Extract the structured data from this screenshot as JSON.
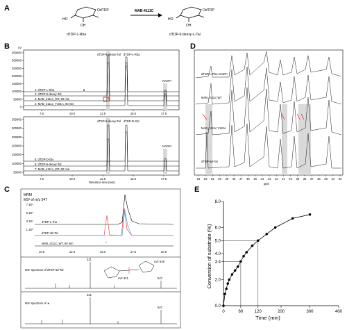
{
  "panel_a": {
    "label": "A",
    "substrate_group": "OdTDP",
    "product_group": "OdTDP",
    "enzyme": "MAB-4111C",
    "substrate_name": "dTDP-L-Rha",
    "product_name": "dTDP-6-deoxy-L-Tal",
    "oh": "HO",
    "oh2": "OH"
  },
  "panel_b": {
    "label": "B",
    "unit": "uV",
    "top": {
      "y_ticks": [
        "350000",
        "300000",
        "250000",
        "200000",
        "150000",
        "100000",
        "50000",
        "0"
      ],
      "peaks": [
        "dTDP-6-deoxy-Tal",
        "dTDP-L-Rha",
        "NADP+"
      ],
      "traces": [
        "1: dTDP-L-Rha",
        "2: dTDP-6-deoxy-Tal",
        "3: MAB_4111c_WT, 60 min",
        "4: MAB_4111c_Y181A, 60 min"
      ]
    },
    "bottom": {
      "y_ticks": [
        "350000",
        "300000",
        "250000",
        "200000",
        "150000",
        "100000",
        "50000"
      ],
      "peaks": [
        "dTDP-6-deoxy-Tal",
        "dTDP-D-Glc",
        "NADP+"
      ],
      "traces": [
        "5: dTDP-D-Glc",
        "6: dTDP-6-deoxy-Tal",
        "7: MAB_4111c_WT, 60 min"
      ]
    },
    "x_ticks": [
      "7.5",
      "10.0",
      "12.5",
      "15.0",
      "17.5"
    ],
    "x_ticks_top": [
      "7.5",
      "10.0",
      "12.5",
      "15.0",
      "17.5"
    ],
    "xlabel": "Retention time (min)"
  },
  "panel_c": {
    "label": "C",
    "title1": "MRM",
    "title2": "MS² of m/z 547",
    "traces": [
      "dTDP-L-rha",
      "dTDP-d6-Tal",
      "MAB_4111c_WT, 60 min"
    ],
    "star": "*",
    "x_ticks": [
      "10.0",
      "12.5",
      "15.0",
      "17.5",
      "20.0"
    ],
    "y_ticks": [
      "7.1E⁵",
      "5.1E⁵",
      "3.1E⁵",
      "1.1E⁵"
    ],
    "ms2_a_label": "MS² spectrum of dTDP-6d-Tal",
    "ms2_a_peaks": [
      "321",
      "547"
    ],
    "ms2_b_label": "MS² spectrum of ★",
    "ms2_b_peaks": [
      "321",
      "547"
    ],
    "struct_note": "m/z 548",
    "struct_frag": "m/z 321"
  },
  "panel_d": {
    "label": "D",
    "traces": [
      "dTDP-L-Rha NADP+",
      "MAB_4111c WT",
      "MAB_4111c Y181A",
      "dTDP-6d-Tal"
    ],
    "x_ticks": [
      "53",
      "52",
      "51",
      "50",
      "49",
      "48",
      "47",
      "46",
      "45",
      "44",
      "43",
      "42",
      "41",
      "40",
      "39",
      "38",
      "37",
      "36",
      "35",
      "34",
      "33"
    ],
    "xlabel": "ppm"
  },
  "panel_e": {
    "label": "E",
    "xlabel": "Time (min)",
    "ylabel": "Conversion of substrate (%)",
    "x_ticks": [
      "0",
      "60",
      "120",
      "200",
      "300",
      "400"
    ],
    "y_ticks": [
      "0.0",
      "2.0",
      "3.4",
      "4.0",
      "5.0",
      "6.0",
      "8.0"
    ]
  },
  "chart_data": {
    "type": "scatter",
    "title": "",
    "xlabel": "Time (min)",
    "ylabel": "Conversion of substrate (%)",
    "xlim": [
      0,
      400
    ],
    "ylim": [
      0,
      8
    ],
    "x": [
      0,
      5,
      10,
      15,
      20,
      30,
      40,
      50,
      60,
      70,
      80,
      100,
      120,
      150,
      180,
      240,
      300
    ],
    "y": [
      0.0,
      0.9,
      1.3,
      1.7,
      2.0,
      2.4,
      2.7,
      3.0,
      3.4,
      3.8,
      4.1,
      4.6,
      5.0,
      5.5,
      6.0,
      6.7,
      7.0
    ],
    "reference_lines": [
      {
        "x": 60,
        "y": 3.4
      },
      {
        "x": 120,
        "y": 5.0
      }
    ],
    "grid": false
  }
}
